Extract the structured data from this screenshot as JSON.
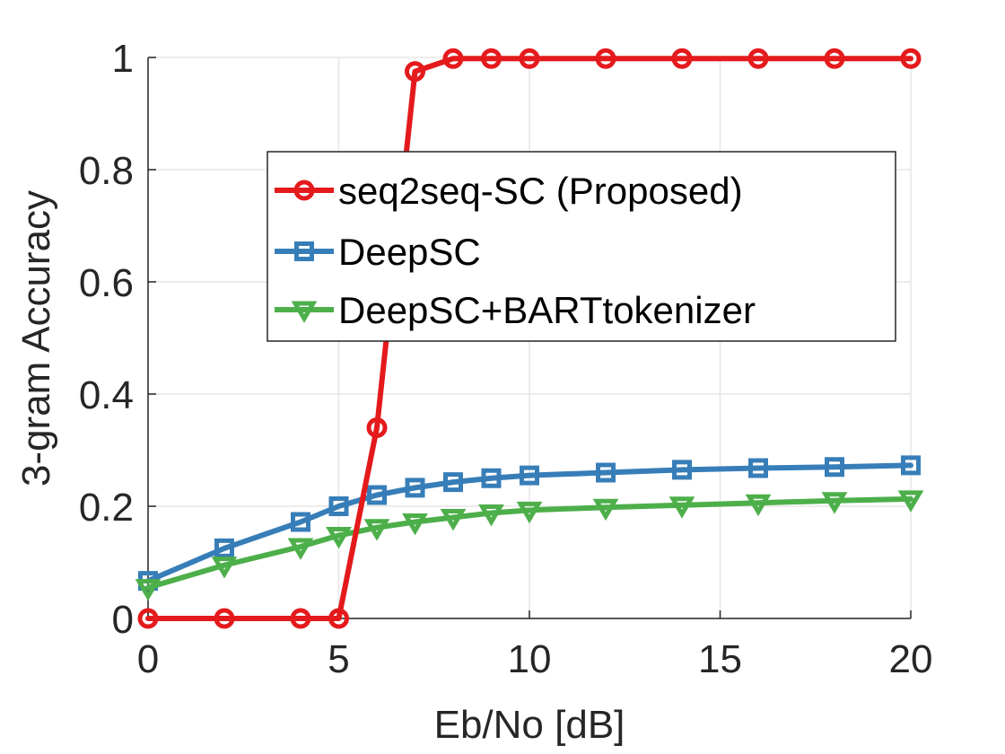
{
  "chart_data": {
    "type": "line",
    "title": "",
    "xlabel": "Eb/No [dB]",
    "ylabel": "3-gram Accuracy",
    "xlim": [
      0,
      20
    ],
    "ylim": [
      0,
      1
    ],
    "xticks": [
      0,
      5,
      10,
      15,
      20
    ],
    "yticks": [
      0,
      0.2,
      0.4,
      0.6,
      0.8,
      1
    ],
    "xtick_labels": [
      "0",
      "5",
      "10",
      "15",
      "20"
    ],
    "ytick_labels": [
      "0",
      "0.2",
      "0.4",
      "0.6",
      "0.8",
      "1"
    ],
    "grid": true,
    "legend_position": "center-right",
    "series": [
      {
        "name": "seq2seq-SC (Proposed)",
        "color": "#e41a1c",
        "marker": "circle",
        "x": [
          0,
          2,
          4,
          5,
          6,
          7,
          8,
          9,
          10,
          12,
          14,
          16,
          18,
          20
        ],
        "y": [
          0,
          0,
          0,
          0,
          0.34,
          0.975,
          0.998,
          0.998,
          0.998,
          0.998,
          0.998,
          0.998,
          0.998,
          0.998
        ]
      },
      {
        "name": "DeepSC",
        "color": "#377eb8",
        "marker": "square",
        "x": [
          0,
          2,
          4,
          5,
          6,
          7,
          8,
          9,
          10,
          12,
          14,
          16,
          18,
          20
        ],
        "y": [
          0.067,
          0.125,
          0.172,
          0.2,
          0.22,
          0.233,
          0.243,
          0.25,
          0.255,
          0.26,
          0.265,
          0.268,
          0.27,
          0.273
        ]
      },
      {
        "name": "DeepSC+BARTtokenizer",
        "color": "#4daf4a",
        "marker": "triangle-down",
        "x": [
          0,
          2,
          4,
          5,
          6,
          7,
          8,
          9,
          10,
          12,
          14,
          16,
          18,
          20
        ],
        "y": [
          0.055,
          0.095,
          0.128,
          0.148,
          0.162,
          0.172,
          0.18,
          0.188,
          0.193,
          0.198,
          0.202,
          0.206,
          0.21,
          0.213
        ]
      }
    ]
  }
}
